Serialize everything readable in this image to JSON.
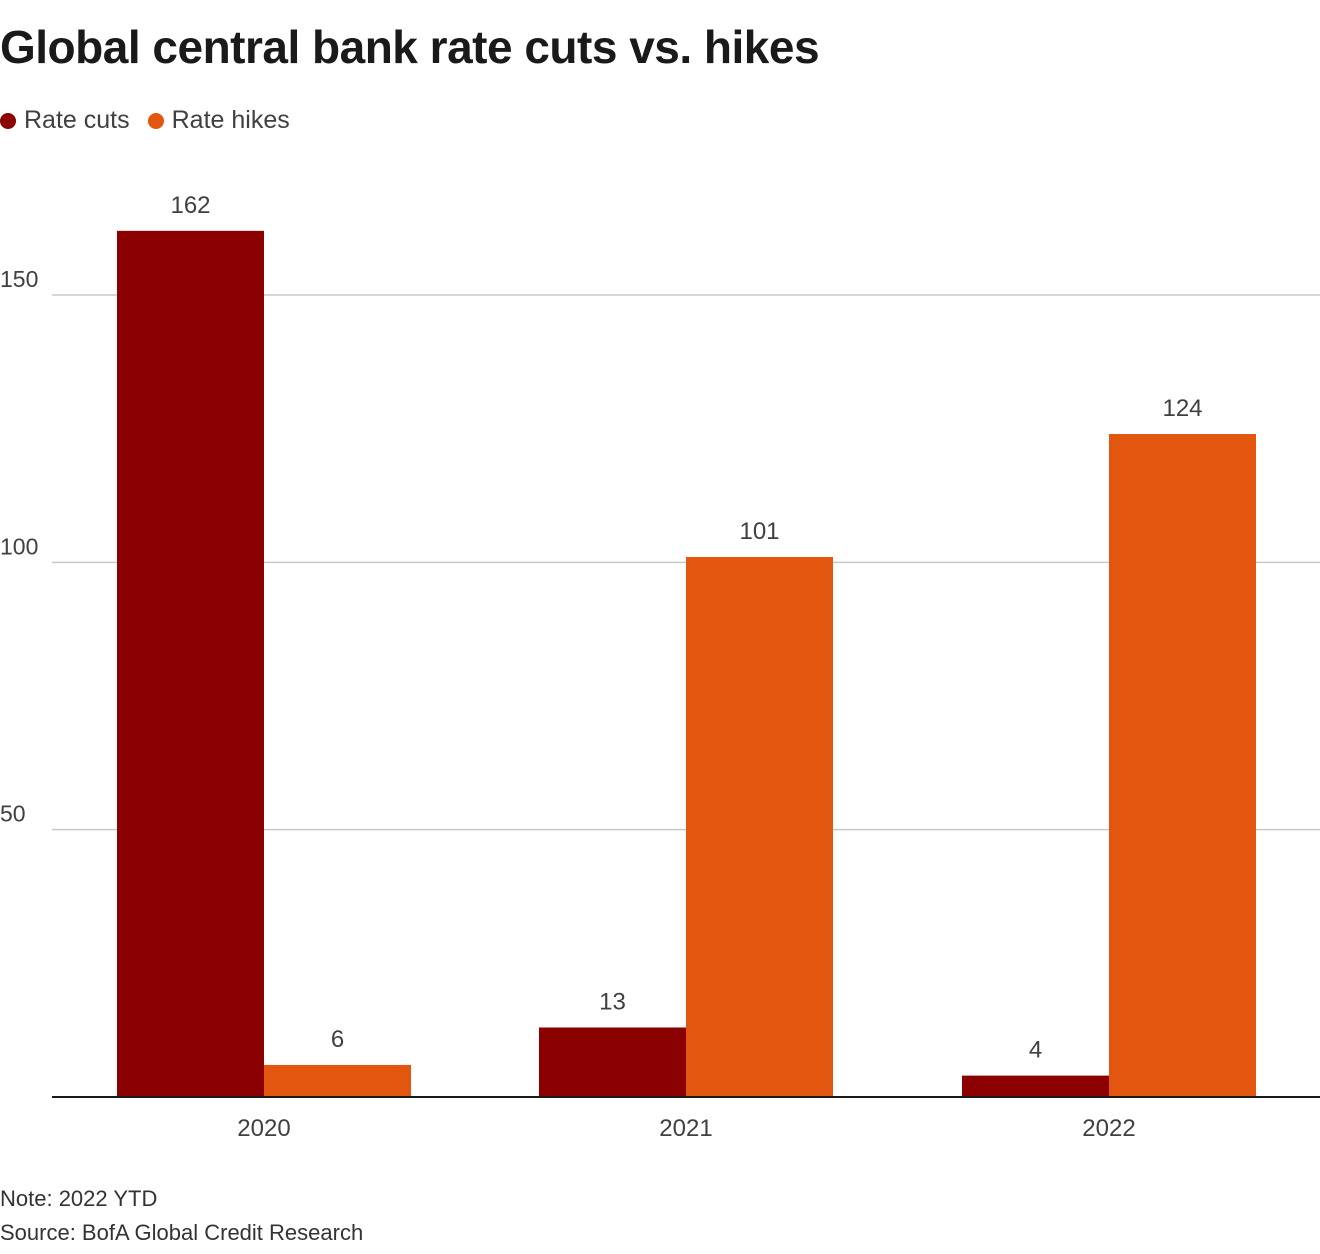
{
  "chart_data": {
    "type": "bar",
    "title": "Global central bank rate cuts vs. hikes",
    "categories": [
      "2020",
      "2021",
      "2022"
    ],
    "series": [
      {
        "name": "Rate cuts",
        "color": "#8b0000",
        "values": [
          162,
          13,
          4
        ]
      },
      {
        "name": "Rate hikes",
        "color": "#e3560f",
        "values": [
          6,
          101,
          124
        ]
      }
    ],
    "yticks": [
      50,
      100,
      150
    ],
    "ylim": [
      0,
      170
    ],
    "xlabel": "",
    "ylabel": "",
    "grid": true,
    "legend": "top-left"
  },
  "footer": {
    "note": "Note: 2022 YTD",
    "source": "Source: BofA Global Credit Research"
  }
}
